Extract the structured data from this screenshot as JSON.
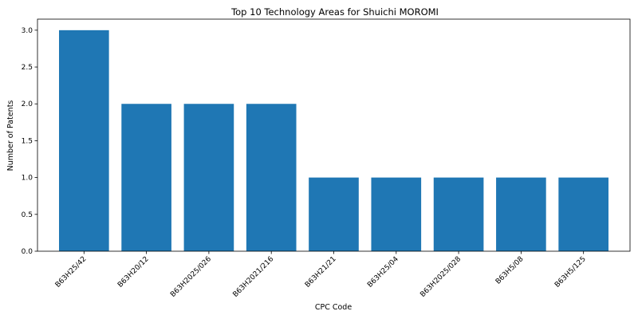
{
  "chart_data": {
    "type": "bar",
    "title": "Top 10 Technology Areas for Shuichi MOROMI",
    "xlabel": "CPC Code",
    "ylabel": "Number of Patents",
    "categories": [
      "B63H25/42",
      "B63H20/12",
      "B63H2025/026",
      "B63H2021/216",
      "B63H21/21",
      "B63H25/04",
      "B63H2025/028",
      "B63H5/08",
      "B63H5/125"
    ],
    "values": [
      3,
      2,
      2,
      2,
      1,
      1,
      1,
      1,
      1
    ],
    "ylim": [
      0,
      3.15
    ],
    "yticks": [
      "0.0",
      "0.5",
      "1.0",
      "1.5",
      "2.0",
      "2.5",
      "3.0"
    ],
    "grid": false,
    "bar_color": "#1f77b4"
  }
}
